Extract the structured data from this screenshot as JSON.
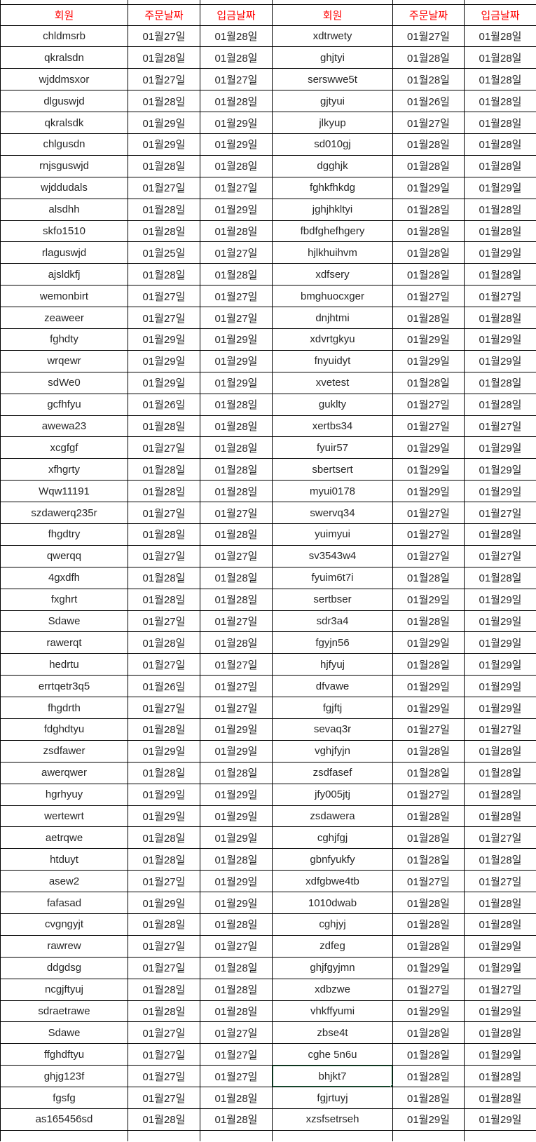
{
  "table": {
    "headers": [
      "회원",
      "주문날짜",
      "입금날짜",
      "회원",
      "주문날짜",
      "입금날짜"
    ],
    "column_kinds": [
      "member",
      "order-date",
      "deposit-date",
      "member",
      "order-date",
      "deposit-date"
    ],
    "rows": [
      [
        "chldmsrb",
        "01월27일",
        "01월28일",
        "xdtrwety",
        "01월27일",
        "01월28일"
      ],
      [
        "qkralsdn",
        "01월28일",
        "01월28일",
        "ghjtyi",
        "01월28일",
        "01월28일"
      ],
      [
        "wjddmsxor",
        "01월27일",
        "01월27일",
        "serswwe5t",
        "01월28일",
        "01월28일"
      ],
      [
        "dlguswjd",
        "01월28일",
        "01월28일",
        "gjtyui",
        "01월26일",
        "01월28일"
      ],
      [
        "qkralsdk",
        "01월29일",
        "01월29일",
        "jlkyup",
        "01월27일",
        "01월28일"
      ],
      [
        "chlgusdn",
        "01월29일",
        "01월29일",
        "sd010gj",
        "01월28일",
        "01월28일"
      ],
      [
        "rnjsguswjd",
        "01월28일",
        "01월28일",
        "dgghjk",
        "01월28일",
        "01월28일"
      ],
      [
        "wjddudals",
        "01월27일",
        "01월27일",
        "fghkfhkdg",
        "01월29일",
        "01월29일"
      ],
      [
        "alsdhh",
        "01월28일",
        "01월29일",
        "jghjhkltyi",
        "01월28일",
        "01월28일"
      ],
      [
        "skfo1510",
        "01월28일",
        "01월28일",
        "fbdfghefhgery",
        "01월28일",
        "01월28일"
      ],
      [
        "rlaguswjd",
        "01월25일",
        "01월27일",
        "hjlkhuihvm",
        "01월28일",
        "01월29일"
      ],
      [
        "ajsldkfj",
        "01월28일",
        "01월28일",
        "xdfsery",
        "01월28일",
        "01월28일"
      ],
      [
        "wemonbirt",
        "01월27일",
        "01월27일",
        "bmghuocxger",
        "01월27일",
        "01월27일"
      ],
      [
        "zeaweer",
        "01월27일",
        "01월27일",
        "dnjhtmi",
        "01월28일",
        "01월28일"
      ],
      [
        "fghdty",
        "01월29일",
        "01월29일",
        "xdvrtgkyu",
        "01월29일",
        "01월29일"
      ],
      [
        "wrqewr",
        "01월29일",
        "01월29일",
        "fnyuidyt",
        "01월29일",
        "01월29일"
      ],
      [
        "sdWe0",
        "01월29일",
        "01월29일",
        "xvetest",
        "01월28일",
        "01월28일"
      ],
      [
        "gcfhfyu",
        "01월26일",
        "01월28일",
        "guklty",
        "01월27일",
        "01월28일"
      ],
      [
        "awewa23",
        "01월28일",
        "01월28일",
        "xertbs34",
        "01월27일",
        "01월27일"
      ],
      [
        "xcgfgf",
        "01월27일",
        "01월28일",
        "fyuir57",
        "01월29일",
        "01월29일"
      ],
      [
        "xfhgrty",
        "01월28일",
        "01월28일",
        "sbertsert",
        "01월29일",
        "01월29일"
      ],
      [
        "Wqw11191",
        "01월28일",
        "01월28일",
        "myui0178",
        "01월29일",
        "01월29일"
      ],
      [
        "szdawerq235r",
        "01월27일",
        "01월27일",
        "swervq34",
        "01월27일",
        "01월27일"
      ],
      [
        "fhgdtry",
        "01월28일",
        "01월28일",
        "yuimyui",
        "01월27일",
        "01월28일"
      ],
      [
        "qwerqq",
        "01월27일",
        "01월27일",
        "sv3543w4",
        "01월27일",
        "01월27일"
      ],
      [
        "4gxdfh",
        "01월28일",
        "01월28일",
        "fyuim6t7i",
        "01월28일",
        "01월28일"
      ],
      [
        "fxghrt",
        "01월28일",
        "01월28일",
        "sertbser",
        "01월29일",
        "01월29일"
      ],
      [
        "Sdawe",
        "01월27일",
        "01월27일",
        "sdr3a4",
        "01월28일",
        "01월29일"
      ],
      [
        "rawerqt",
        "01월28일",
        "01월28일",
        "fgyjn56",
        "01월29일",
        "01월29일"
      ],
      [
        "hedrtu",
        "01월27일",
        "01월27일",
        "hjfyuj",
        "01월28일",
        "01월29일"
      ],
      [
        "errtqetr3q5",
        "01월26일",
        "01월27일",
        "dfvawe",
        "01월29일",
        "01월29일"
      ],
      [
        "fhgdrth",
        "01월27일",
        "01월27일",
        "fgjftj",
        "01월29일",
        "01월29일"
      ],
      [
        "fdghdtyu",
        "01월28일",
        "01월29일",
        "sevaq3r",
        "01월27일",
        "01월27일"
      ],
      [
        "zsdfawer",
        "01월29일",
        "01월29일",
        "vghjfyjn",
        "01월28일",
        "01월28일"
      ],
      [
        "awerqwer",
        "01월28일",
        "01월28일",
        "zsdfasef",
        "01월28일",
        "01월28일"
      ],
      [
        "hgrhyuy",
        "01월29일",
        "01월29일",
        "jfy005jtj",
        "01월27일",
        "01월28일"
      ],
      [
        "wertewrt",
        "01월29일",
        "01월29일",
        "zsdawera",
        "01월28일",
        "01월28일"
      ],
      [
        "aetrqwe",
        "01월28일",
        "01월29일",
        "cghjfgj",
        "01월28일",
        "01월27일"
      ],
      [
        "htduyt",
        "01월28일",
        "01월28일",
        "gbnfyukfy",
        "01월28일",
        "01월28일"
      ],
      [
        "asew2",
        "01월27일",
        "01월29일",
        "xdfgbwe4tb",
        "01월27일",
        "01월27일"
      ],
      [
        "fafasad",
        "01월29일",
        "01월29일",
        "1010dwab",
        "01월28일",
        "01월28일"
      ],
      [
        "cvgngyjt",
        "01월28일",
        "01월28일",
        "cghjyj",
        "01월28일",
        "01월28일"
      ],
      [
        "rawrew",
        "01월27일",
        "01월27일",
        "zdfeg",
        "01월28일",
        "01월29일"
      ],
      [
        "ddgdsg",
        "01월27일",
        "01월28일",
        "ghjfgyjmn",
        "01월29일",
        "01월29일"
      ],
      [
        "ncgjftyuj",
        "01월28일",
        "01월28일",
        "xdbzwe",
        "01월27일",
        "01월27일"
      ],
      [
        "sdraetrawe",
        "01월28일",
        "01월28일",
        "vhkffyumi",
        "01월29일",
        "01월29일"
      ],
      [
        "Sdawe",
        "01월27일",
        "01월27일",
        "zbse4t",
        "01월28일",
        "01월28일"
      ],
      [
        "ffghdftyu",
        "01월27일",
        "01월27일",
        "cghe 5n6u",
        "01월28일",
        "01월29일"
      ],
      [
        "ghjg123f",
        "01월27일",
        "01월27일",
        "bhjkt7",
        "01월28일",
        "01월28일"
      ],
      [
        "fgsfg",
        "01월27일",
        "01월28일",
        "fgjrtuyj",
        "01월28일",
        "01월28일"
      ],
      [
        "as165456sd",
        "01월28일",
        "01월28일",
        "xzsfsetrseh",
        "01월29일",
        "01월29일"
      ]
    ],
    "selection": {
      "row_index": 48,
      "col_index": 3,
      "value": "bhjkt7"
    }
  },
  "colors": {
    "header_text": "#FF0000",
    "selection_border": "#217346",
    "grid_line": "#000000",
    "cell_text": "#262626",
    "background": "#FFFFFF"
  }
}
